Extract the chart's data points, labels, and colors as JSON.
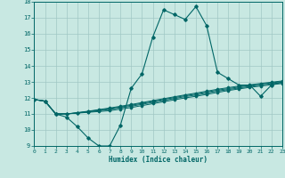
{
  "xlabel": "Humidex (Indice chaleur)",
  "xlim": [
    0,
    23
  ],
  "ylim": [
    9,
    18
  ],
  "yticks": [
    9,
    10,
    11,
    12,
    13,
    14,
    15,
    16,
    17,
    18
  ],
  "xticks": [
    0,
    1,
    2,
    3,
    4,
    5,
    6,
    7,
    8,
    9,
    10,
    11,
    12,
    13,
    14,
    15,
    16,
    17,
    18,
    19,
    20,
    21,
    22,
    23
  ],
  "bg_color": "#c8e8e2",
  "grid_color": "#a0c8c4",
  "line_color": "#006666",
  "curve_x": [
    0,
    1,
    2,
    3,
    4,
    5,
    6,
    7,
    8,
    9,
    10,
    11,
    12,
    13,
    14,
    15,
    16,
    17,
    18,
    19,
    20,
    21,
    22,
    23
  ],
  "curve_y": [
    11.9,
    11.8,
    11.0,
    10.8,
    10.2,
    9.5,
    9.0,
    9.0,
    10.3,
    12.6,
    13.5,
    15.8,
    17.5,
    17.2,
    16.9,
    17.7,
    16.5,
    13.6,
    13.2,
    12.8,
    12.8,
    12.1,
    12.8,
    13.0
  ],
  "flat_lines_y": [
    [
      11.9,
      11.8,
      11.0,
      11.0,
      11.05,
      11.1,
      11.15,
      11.2,
      11.3,
      11.4,
      11.52,
      11.64,
      11.76,
      11.88,
      12.0,
      12.1,
      12.22,
      12.34,
      12.46,
      12.56,
      12.66,
      12.74,
      12.82,
      12.9
    ],
    [
      11.9,
      11.8,
      11.0,
      11.0,
      11.06,
      11.13,
      11.2,
      11.28,
      11.38,
      11.48,
      11.6,
      11.72,
      11.84,
      11.96,
      12.08,
      12.18,
      12.3,
      12.42,
      12.52,
      12.62,
      12.72,
      12.8,
      12.88,
      12.96
    ],
    [
      11.9,
      11.8,
      11.0,
      11.0,
      11.07,
      11.15,
      11.24,
      11.33,
      11.43,
      11.54,
      11.66,
      11.78,
      11.9,
      12.02,
      12.14,
      12.24,
      12.36,
      12.48,
      12.58,
      12.68,
      12.78,
      12.86,
      12.94,
      13.02
    ],
    [
      11.9,
      11.8,
      11.0,
      11.0,
      11.08,
      11.17,
      11.27,
      11.37,
      11.48,
      11.59,
      11.71,
      11.83,
      11.95,
      12.07,
      12.19,
      12.3,
      12.42,
      12.54,
      12.64,
      12.74,
      12.82,
      12.9,
      12.98,
      13.06
    ]
  ]
}
